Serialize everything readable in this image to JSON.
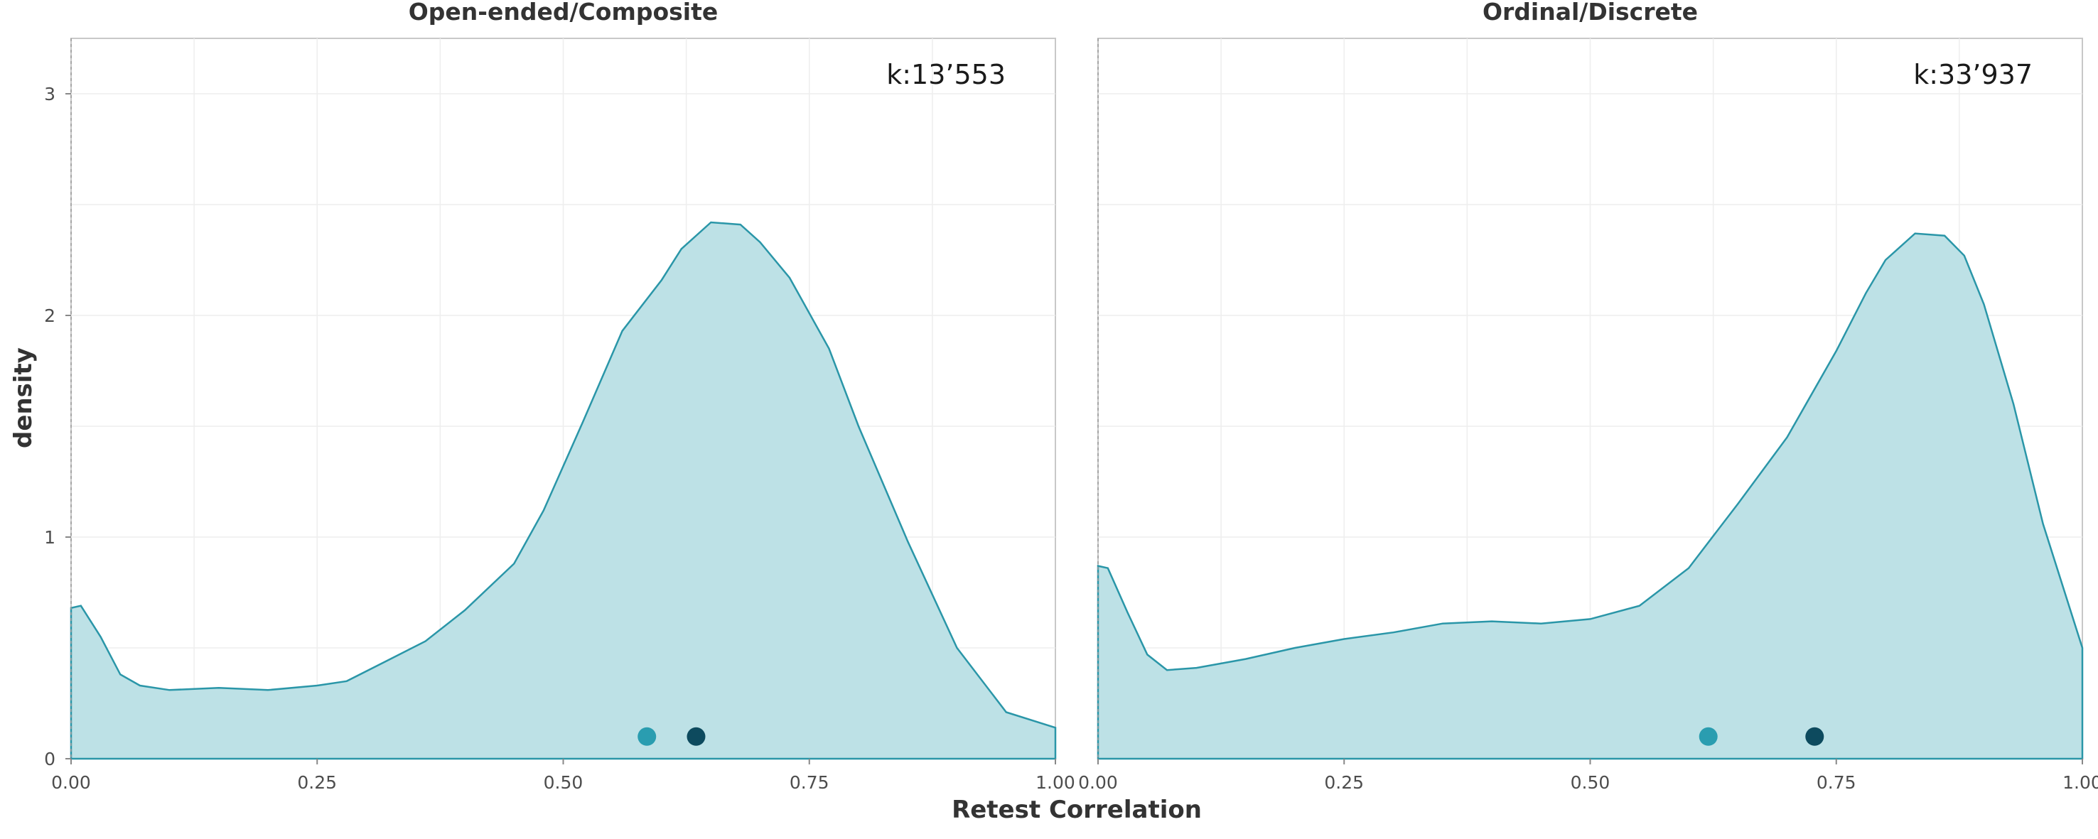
{
  "chart_data": [
    {
      "type": "area",
      "title": "Open-ended/Composite",
      "annotation": "k:13’553",
      "xlim": [
        0,
        1
      ],
      "ylim": [
        0,
        3.25
      ],
      "x_ticks": [
        0,
        0.25,
        0.5,
        0.75,
        1
      ],
      "x_tick_labels": [
        "0.00",
        "0.25",
        "0.50",
        "0.75",
        "1.00"
      ],
      "y_ticks": [
        0,
        1,
        2,
        3
      ],
      "y_tick_labels": [
        "0",
        "1",
        "2",
        "3"
      ],
      "grid": true,
      "fill_color": "#bde1e6",
      "line_color": "#2a96a8",
      "density": {
        "x": [
          0.0,
          0.01,
          0.03,
          0.05,
          0.07,
          0.1,
          0.15,
          0.2,
          0.25,
          0.28,
          0.32,
          0.36,
          0.4,
          0.45,
          0.48,
          0.52,
          0.56,
          0.6,
          0.62,
          0.65,
          0.68,
          0.7,
          0.73,
          0.77,
          0.8,
          0.85,
          0.9,
          0.95,
          1.0
        ],
        "y": [
          0.68,
          0.69,
          0.55,
          0.38,
          0.33,
          0.31,
          0.32,
          0.31,
          0.33,
          0.35,
          0.44,
          0.53,
          0.67,
          0.88,
          1.12,
          1.52,
          1.93,
          2.16,
          2.3,
          2.42,
          2.41,
          2.33,
          2.17,
          1.85,
          1.5,
          0.98,
          0.5,
          0.21,
          0.14
        ]
      },
      "points": [
        {
          "x": 0.585,
          "y": 0.1,
          "color": "#2a9db0"
        },
        {
          "x": 0.635,
          "y": 0.1,
          "color": "#0d4a5e"
        }
      ]
    },
    {
      "type": "area",
      "title": "Ordinal/Discrete",
      "annotation": "k:33’937",
      "xlim": [
        0,
        1
      ],
      "ylim": [
        0,
        3.25
      ],
      "x_ticks": [
        0,
        0.25,
        0.5,
        0.75,
        1
      ],
      "x_tick_labels": [
        "0.00",
        "0.25",
        "0.50",
        "0.75",
        "1.00"
      ],
      "y_ticks": [
        0,
        1,
        2,
        3
      ],
      "y_tick_labels": [],
      "grid": true,
      "fill_color": "#bde1e6",
      "line_color": "#2a96a8",
      "density": {
        "x": [
          0.0,
          0.01,
          0.03,
          0.05,
          0.07,
          0.1,
          0.15,
          0.2,
          0.25,
          0.3,
          0.35,
          0.4,
          0.45,
          0.5,
          0.55,
          0.6,
          0.65,
          0.7,
          0.75,
          0.78,
          0.8,
          0.83,
          0.86,
          0.88,
          0.9,
          0.93,
          0.96,
          1.0
        ],
        "y": [
          0.87,
          0.86,
          0.66,
          0.47,
          0.4,
          0.41,
          0.45,
          0.5,
          0.54,
          0.57,
          0.61,
          0.62,
          0.61,
          0.63,
          0.69,
          0.86,
          1.15,
          1.45,
          1.84,
          2.1,
          2.25,
          2.37,
          2.36,
          2.27,
          2.05,
          1.6,
          1.06,
          0.5
        ]
      },
      "points": [
        {
          "x": 0.62,
          "y": 0.1,
          "color": "#2a9db0"
        },
        {
          "x": 0.728,
          "y": 0.1,
          "color": "#0d4a5e"
        }
      ]
    }
  ],
  "axes": {
    "xlabel": "Retest Correlation",
    "ylabel": "density"
  }
}
